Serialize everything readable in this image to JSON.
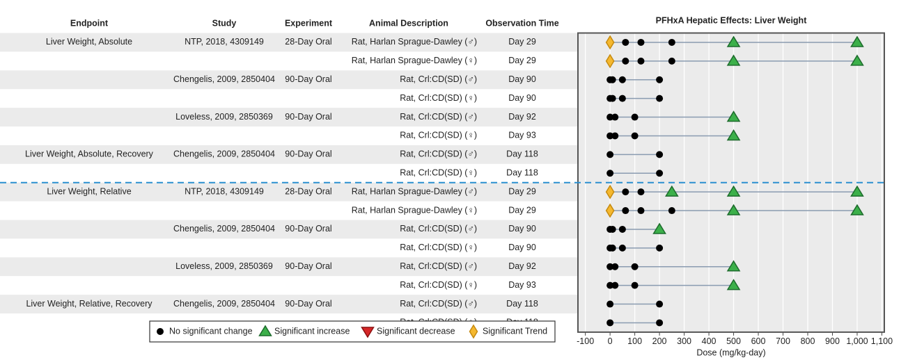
{
  "table": {
    "columns": [
      "Endpoint",
      "Study",
      "Experiment",
      "Animal Description",
      "Observation Time"
    ],
    "rows": [
      [
        "Liver Weight, Absolute",
        "NTP, 2018, 4309149",
        "28-Day Oral",
        "Rat, Harlan Sprague-Dawley (♂)",
        "Day 29"
      ],
      [
        null,
        null,
        null,
        "Rat, Harlan Sprague-Dawley (♀)",
        "Day 29"
      ],
      [
        null,
        "Chengelis, 2009, 2850404",
        "90-Day Oral",
        "Rat, Crl:CD(SD) (♂)",
        "Day 90"
      ],
      [
        null,
        null,
        null,
        "Rat, Crl:CD(SD) (♀)",
        "Day 90"
      ],
      [
        null,
        "Loveless, 2009, 2850369",
        "90-Day Oral",
        "Rat, Crl:CD(SD) (♂)",
        "Day 92"
      ],
      [
        null,
        null,
        null,
        "Rat, Crl:CD(SD) (♀)",
        "Day 93"
      ],
      [
        "Liver Weight, Absolute, Recovery",
        "Chengelis, 2009, 2850404",
        "90-Day Oral",
        "Rat, Crl:CD(SD) (♂)",
        "Day 118"
      ],
      [
        null,
        null,
        null,
        "Rat, Crl:CD(SD) (♀)",
        "Day 118"
      ],
      [
        "Liver Weight, Relative",
        "NTP, 2018, 4309149",
        "28-Day Oral",
        "Rat, Harlan Sprague-Dawley (♂)",
        "Day 29"
      ],
      [
        null,
        null,
        null,
        "Rat, Harlan Sprague-Dawley (♀)",
        "Day 29"
      ],
      [
        null,
        "Chengelis, 2009, 2850404",
        "90-Day Oral",
        "Rat, Crl:CD(SD) (♂)",
        "Day 90"
      ],
      [
        null,
        null,
        null,
        "Rat, Crl:CD(SD) (♀)",
        "Day 90"
      ],
      [
        null,
        "Loveless, 2009, 2850369",
        "90-Day Oral",
        "Rat, Crl:CD(SD) (♂)",
        "Day 92"
      ],
      [
        null,
        null,
        null,
        "Rat, Crl:CD(SD) (♀)",
        "Day 93"
      ],
      [
        "Liver Weight, Relative, Recovery",
        "Chengelis, 2009, 2850404",
        "90-Day Oral",
        "Rat, Crl:CD(SD) (♂)",
        "Day 118"
      ],
      [
        null,
        null,
        null,
        "Rat, Crl:CD(SD) (♀)",
        "Day 118"
      ]
    ]
  },
  "chart_data": {
    "type": "dose-response",
    "title": "PFHxA Hepatic Effects: Liver Weight",
    "xlabel": "Dose (mg/kg-day)",
    "xlim": [
      -130,
      1110
    ],
    "xticks": [
      -100,
      0,
      100,
      200,
      300,
      400,
      500,
      600,
      700,
      800,
      900,
      {
        "value": 1000,
        "label": "1,000"
      },
      {
        "value": 1100,
        "label": "1,100"
      }
    ],
    "grid": true,
    "legend": [
      {
        "name": "No significant change",
        "color": "#000000"
      },
      {
        "name": "Significant increase",
        "color": "#3cb04a"
      },
      {
        "name": "Significant decrease",
        "color": "#d62728"
      },
      {
        "name": "Significant Trend",
        "color": "#f5b82e"
      }
    ],
    "rows": [
      {
        "doses": [
          0,
          62.5,
          125,
          250,
          500,
          1000
        ],
        "effects": [
          "Significant Trend",
          "No significant change",
          "No significant change",
          "No significant change",
          "Significant increase",
          "Significant increase"
        ]
      },
      {
        "doses": [
          0,
          62.5,
          125,
          250,
          500,
          1000
        ],
        "effects": [
          "Significant Trend",
          "No significant change",
          "No significant change",
          "No significant change",
          "Significant increase",
          "Significant increase"
        ]
      },
      {
        "doses": [
          0,
          10,
          50,
          200
        ],
        "effects": [
          "No significant change",
          "No significant change",
          "No significant change",
          "No significant change"
        ]
      },
      {
        "doses": [
          0,
          10,
          50,
          200
        ],
        "effects": [
          "No significant change",
          "No significant change",
          "No significant change",
          "No significant change"
        ]
      },
      {
        "doses": [
          0,
          20,
          100,
          500
        ],
        "effects": [
          "No significant change",
          "No significant change",
          "No significant change",
          "Significant increase"
        ]
      },
      {
        "doses": [
          0,
          20,
          100,
          500
        ],
        "effects": [
          "No significant change",
          "No significant change",
          "No significant change",
          "Significant increase"
        ]
      },
      {
        "doses": [
          0,
          200
        ],
        "effects": [
          "No significant change",
          "No significant change"
        ]
      },
      {
        "doses": [
          0,
          200
        ],
        "effects": [
          "No significant change",
          "No significant change"
        ]
      },
      {
        "doses": [
          0,
          62.5,
          125,
          250,
          500,
          1000
        ],
        "effects": [
          "Significant Trend",
          "No significant change",
          "No significant change",
          "Significant increase",
          "Significant increase",
          "Significant increase"
        ]
      },
      {
        "doses": [
          0,
          62.5,
          125,
          250,
          500,
          1000
        ],
        "effects": [
          "Significant Trend",
          "No significant change",
          "No significant change",
          "No significant change",
          "Significant increase",
          "Significant increase"
        ]
      },
      {
        "doses": [
          0,
          10,
          50,
          200
        ],
        "effects": [
          "No significant change",
          "No significant change",
          "No significant change",
          "Significant increase"
        ]
      },
      {
        "doses": [
          0,
          10,
          50,
          200
        ],
        "effects": [
          "No significant change",
          "No significant change",
          "No significant change",
          "No significant change"
        ]
      },
      {
        "doses": [
          0,
          20,
          100,
          500
        ],
        "effects": [
          "No significant change",
          "No significant change",
          "No significant change",
          "Significant increase"
        ]
      },
      {
        "doses": [
          0,
          20,
          100,
          500
        ],
        "effects": [
          "No significant change",
          "No significant change",
          "No significant change",
          "Significant increase"
        ]
      },
      {
        "doses": [
          0,
          200
        ],
        "effects": [
          "No significant change",
          "No significant change"
        ]
      },
      {
        "doses": [
          0,
          200
        ],
        "effects": [
          "No significant change",
          "No significant change"
        ]
      }
    ]
  }
}
